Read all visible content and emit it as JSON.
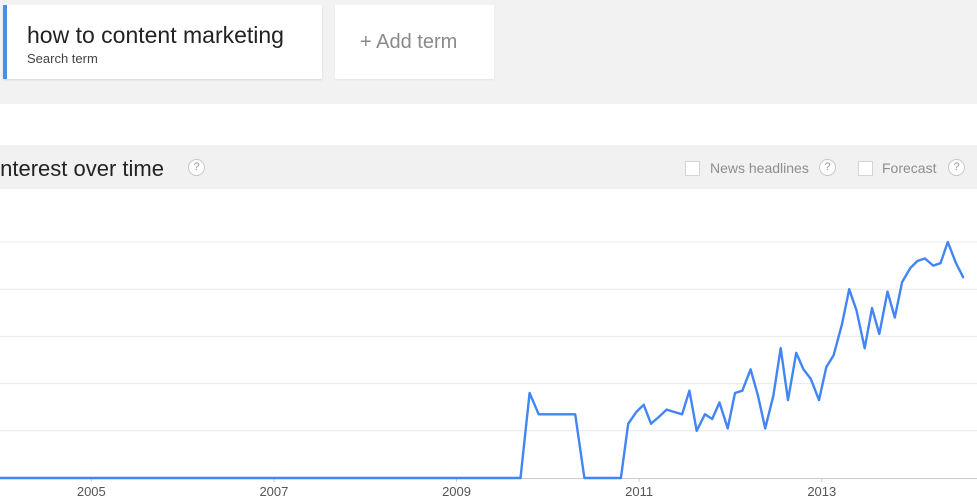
{
  "search_terms": {
    "term": "how to content marketing",
    "term_sublabel": "Search term",
    "add_term_label": "+ Add term"
  },
  "header": {
    "title": "Interest over time",
    "help_glyph": "?",
    "news_headlines_label": "News headlines",
    "forecast_label": "Forecast"
  },
  "colors": {
    "line": "#4285f4",
    "accent": "#4a90e2"
  },
  "chart_data": {
    "type": "line",
    "title": "Interest over time",
    "xlabel": "",
    "ylabel": "",
    "ylim": [
      0,
      100
    ],
    "xlim": [
      2004.0,
      2014.7
    ],
    "grid": true,
    "legend": "none",
    "x_ticks": [
      "2005",
      "2007",
      "2009",
      "2011",
      "2013"
    ],
    "series": [
      {
        "name": "how to content marketing",
        "x": [
          2004.0,
          2009.7,
          2009.8,
          2009.9,
          2010.3,
          2010.4,
          2010.8,
          2010.88,
          2010.97,
          2011.05,
          2011.13,
          2011.22,
          2011.3,
          2011.38,
          2011.47,
          2011.55,
          2011.63,
          2011.72,
          2011.8,
          2011.88,
          2011.97,
          2012.05,
          2012.13,
          2012.22,
          2012.3,
          2012.38,
          2012.47,
          2012.55,
          2012.63,
          2012.72,
          2012.8,
          2012.88,
          2012.97,
          2013.05,
          2013.13,
          2013.22,
          2013.3,
          2013.38,
          2013.47,
          2013.55,
          2013.63,
          2013.72,
          2013.8,
          2013.88,
          2013.97,
          2014.05,
          2014.13,
          2014.22,
          2014.3,
          2014.38,
          2014.47,
          2014.55
        ],
        "values": [
          0,
          0,
          36,
          27,
          27,
          0,
          0,
          23,
          28,
          31,
          23,
          26,
          29,
          28,
          27,
          37,
          20,
          27,
          25,
          32,
          21,
          36,
          37,
          46,
          35,
          21,
          35,
          55,
          33,
          53,
          46,
          42,
          33,
          47,
          52,
          65,
          80,
          71,
          55,
          72,
          61,
          79,
          68,
          83,
          89,
          92,
          93,
          90,
          91,
          100,
          91,
          85
        ]
      }
    ]
  }
}
